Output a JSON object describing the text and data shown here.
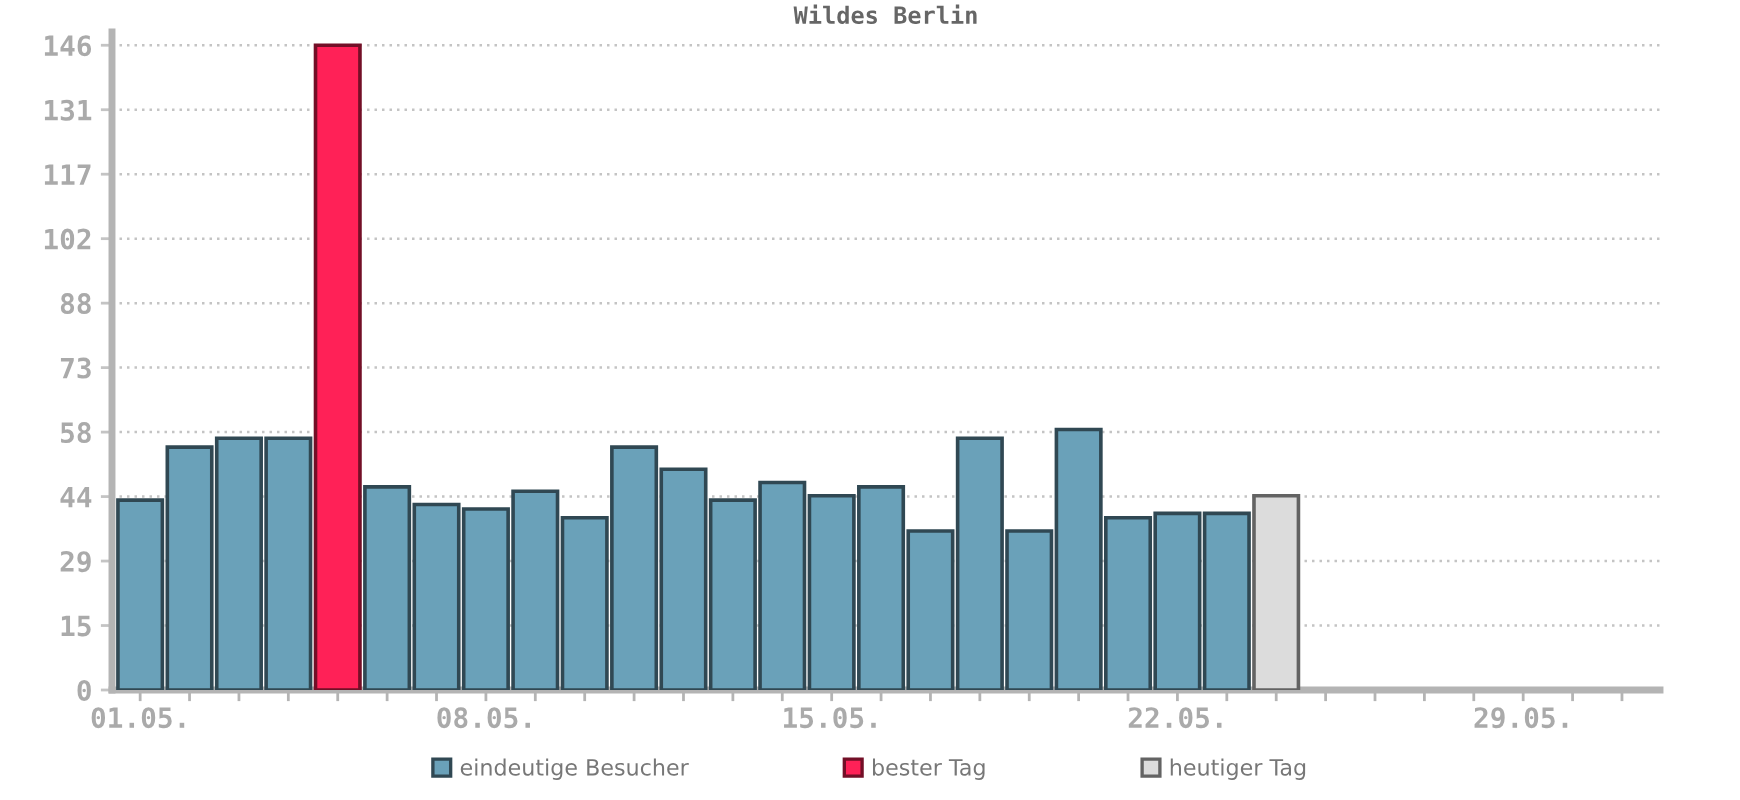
{
  "chart_data": {
    "type": "bar",
    "title": "Wildes Berlin",
    "categories": [
      "01.05.",
      null,
      null,
      null,
      null,
      null,
      null,
      "08.05.",
      null,
      null,
      null,
      null,
      null,
      null,
      "15.05.",
      null,
      null,
      null,
      null,
      null,
      null,
      "22.05.",
      null,
      null,
      null,
      null,
      null,
      null,
      "29.05.",
      null,
      null
    ],
    "series": [
      {
        "name": "eindeutige Besucher",
        "color": "#6aa1b9",
        "values": [
          43,
          55,
          57,
          57,
          null,
          46,
          42,
          41,
          45,
          39,
          55,
          50,
          43,
          47,
          44,
          46,
          36,
          57,
          36,
          59,
          39,
          40,
          40,
          null,
          null,
          null,
          null,
          null,
          null,
          null,
          null
        ]
      },
      {
        "name": "bester Tag",
        "color": "#ff2157",
        "values": [
          null,
          null,
          null,
          null,
          146,
          null,
          null,
          null,
          null,
          null,
          null,
          null,
          null,
          null,
          null,
          null,
          null,
          null,
          null,
          null,
          null,
          null,
          null,
          null,
          null,
          null,
          null,
          null,
          null,
          null,
          null
        ]
      },
      {
        "name": "heutiger Tag",
        "color": "#dcdcdc",
        "values": [
          null,
          null,
          null,
          null,
          null,
          null,
          null,
          null,
          null,
          null,
          null,
          null,
          null,
          null,
          null,
          null,
          null,
          null,
          null,
          null,
          null,
          null,
          null,
          44,
          null,
          null,
          null,
          null,
          null,
          null,
          null
        ]
      }
    ],
    "ylim": [
      0,
      149
    ],
    "yticks": [
      0,
      {
        "value": 14.6,
        "label": "15"
      },
      {
        "value": 29.2,
        "label": "29"
      },
      {
        "value": 43.8,
        "label": "44"
      },
      {
        "value": 58.4,
        "label": "58"
      },
      73,
      {
        "value": 87.6,
        "label": "88"
      },
      {
        "value": 102.2,
        "label": "102"
      },
      {
        "value": 116.8,
        "label": "117"
      },
      {
        "value": 131.4,
        "label": "131"
      },
      146
    ],
    "grid": "y",
    "legend": "bottom"
  }
}
